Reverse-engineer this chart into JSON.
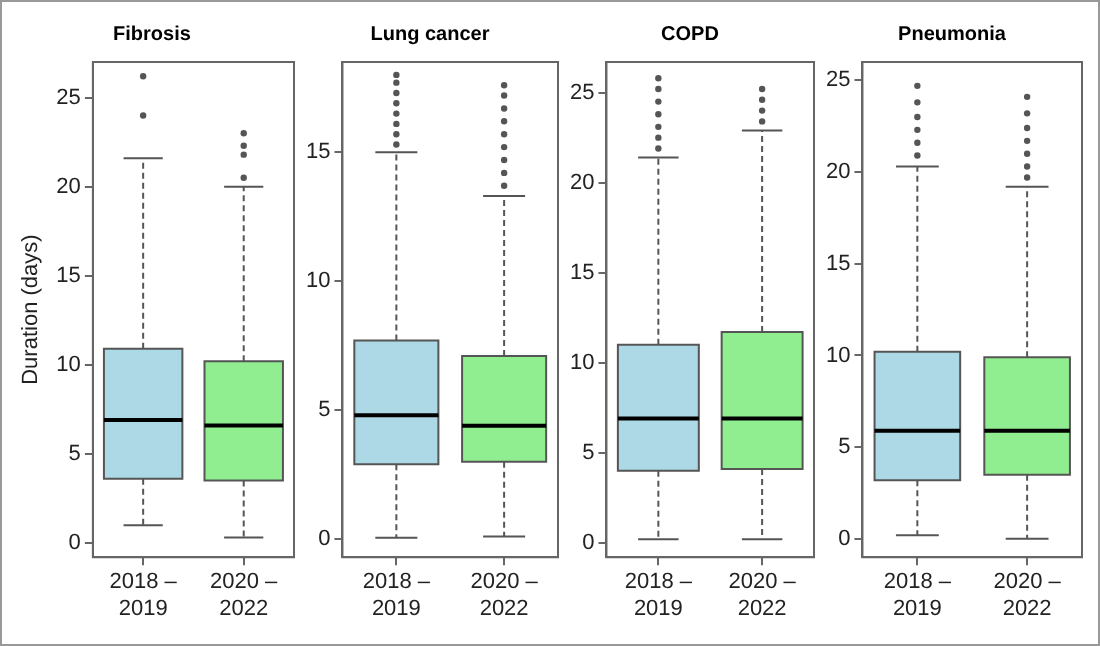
{
  "chart_data": [
    {
      "type": "box",
      "title": "Fibrosis",
      "ylabel": "Duration (days)",
      "categories": [
        "2018 – 2019",
        "2020 – 2022"
      ],
      "colors": [
        "#add8e6",
        "#90ee90"
      ],
      "ylim": [
        -0.8,
        27
      ],
      "yticks": [
        0,
        5,
        10,
        15,
        20,
        25
      ],
      "grid": false,
      "boxes": [
        {
          "low": 1.0,
          "q1": 3.6,
          "median": 6.9,
          "q3": 10.9,
          "high": 21.6,
          "outliers": [
            24.0,
            26.2
          ]
        },
        {
          "low": 0.3,
          "q1": 3.5,
          "median": 6.6,
          "q3": 10.2,
          "high": 20.0,
          "outliers": [
            20.5,
            21.8,
            22.3,
            23.0
          ]
        }
      ]
    },
    {
      "type": "box",
      "title": "Lung cancer",
      "categories": [
        "2018 – 2019",
        "2020 – 2022"
      ],
      "colors": [
        "#add8e6",
        "#90ee90"
      ],
      "ylim": [
        -0.7,
        18.5
      ],
      "yticks": [
        0,
        5,
        10,
        15
      ],
      "grid": false,
      "boxes": [
        {
          "low": 0.05,
          "q1": 2.9,
          "median": 4.8,
          "q3": 7.7,
          "high": 15.0,
          "outliers": [
            15.3,
            15.7,
            16.1,
            16.5,
            16.9,
            17.3,
            17.7,
            18.0
          ]
        },
        {
          "low": 0.1,
          "q1": 3.0,
          "median": 4.4,
          "q3": 7.1,
          "high": 13.3,
          "outliers": [
            13.7,
            14.2,
            14.7,
            15.2,
            15.7,
            16.2,
            16.7,
            17.2,
            17.6
          ]
        }
      ]
    },
    {
      "type": "box",
      "title": "COPD",
      "categories": [
        "2018 – 2019",
        "2020 – 2022"
      ],
      "colors": [
        "#add8e6",
        "#90ee90"
      ],
      "ylim": [
        -0.8,
        26.7
      ],
      "yticks": [
        0,
        5,
        10,
        15,
        20,
        25
      ],
      "grid": false,
      "boxes": [
        {
          "low": 0.2,
          "q1": 4.0,
          "median": 6.9,
          "q3": 11.0,
          "high": 21.4,
          "outliers": [
            21.9,
            22.5,
            23.1,
            23.8,
            24.5,
            25.2,
            25.8
          ]
        },
        {
          "low": 0.2,
          "q1": 4.1,
          "median": 6.9,
          "q3": 11.7,
          "high": 22.9,
          "outliers": [
            23.4,
            24.0,
            24.6,
            25.2
          ]
        }
      ]
    },
    {
      "type": "box",
      "title": "Pneumonia",
      "categories": [
        "2018 – 2019",
        "2020 – 2022"
      ],
      "colors": [
        "#add8e6",
        "#90ee90"
      ],
      "ylim": [
        -1,
        26
      ],
      "yticks": [
        0,
        5,
        10,
        15,
        20,
        25
      ],
      "grid": false,
      "boxes": [
        {
          "low": 0.2,
          "q1": 3.2,
          "median": 5.9,
          "q3": 10.2,
          "high": 20.3,
          "outliers": [
            20.9,
            21.6,
            22.3,
            23.0,
            23.8,
            24.7
          ]
        },
        {
          "low": 0.0,
          "q1": 3.5,
          "median": 5.9,
          "q3": 9.9,
          "high": 19.2,
          "outliers": [
            19.7,
            20.3,
            21.0,
            21.7,
            22.4,
            23.2,
            24.1
          ]
        }
      ]
    }
  ]
}
